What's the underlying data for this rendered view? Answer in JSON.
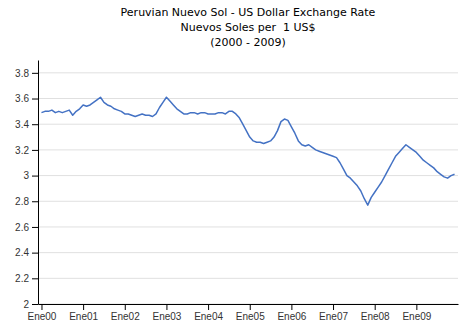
{
  "chart_data": {
    "type": "line",
    "title": "Peruvian Nuevo Sol - US Dollar Exchange Rate\nNuevos Soles per  1 US$\n(2000 - 2009)",
    "color": "#4472C4",
    "x": [
      0,
      1,
      2,
      3,
      4,
      5,
      6,
      7,
      8,
      9,
      10,
      11,
      12,
      13,
      14,
      15,
      16,
      17,
      18,
      19,
      20,
      21,
      22,
      23,
      24,
      25,
      26,
      27,
      28,
      29,
      30,
      31,
      32,
      33,
      34,
      35,
      36,
      37,
      38,
      39,
      40,
      41,
      42,
      43,
      44,
      45,
      46,
      47,
      48,
      49,
      50,
      51,
      52,
      53,
      54,
      55,
      56,
      57,
      58,
      59,
      60,
      61,
      62,
      63,
      64,
      65,
      66,
      67,
      68,
      69,
      70,
      71,
      72,
      73,
      74,
      75,
      76,
      77,
      78,
      79,
      80,
      81,
      82,
      83,
      84,
      85,
      86,
      87,
      88,
      89,
      90,
      91,
      92,
      93,
      94,
      95,
      96,
      97,
      98,
      99,
      100,
      101,
      102,
      103,
      104,
      105,
      106,
      107,
      108,
      109,
      110,
      111,
      112,
      113,
      114,
      115,
      116,
      117,
      118,
      119
    ],
    "values": [
      3.49,
      3.5,
      3.5,
      3.51,
      3.49,
      3.5,
      3.49,
      3.5,
      3.51,
      3.47,
      3.5,
      3.52,
      3.55,
      3.54,
      3.55,
      3.57,
      3.59,
      3.61,
      3.57,
      3.55,
      3.54,
      3.52,
      3.51,
      3.5,
      3.48,
      3.48,
      3.47,
      3.46,
      3.47,
      3.48,
      3.47,
      3.47,
      3.46,
      3.48,
      3.53,
      3.57,
      3.61,
      3.58,
      3.55,
      3.52,
      3.5,
      3.48,
      3.48,
      3.49,
      3.49,
      3.48,
      3.49,
      3.49,
      3.48,
      3.48,
      3.48,
      3.49,
      3.49,
      3.48,
      3.5,
      3.5,
      3.48,
      3.45,
      3.4,
      3.35,
      3.3,
      3.27,
      3.26,
      3.26,
      3.25,
      3.26,
      3.27,
      3.3,
      3.35,
      3.42,
      3.44,
      3.43,
      3.38,
      3.33,
      3.27,
      3.24,
      3.23,
      3.24,
      3.22,
      3.2,
      3.19,
      3.18,
      3.17,
      3.16,
      3.15,
      3.14,
      3.1,
      3.05,
      3.0,
      2.98,
      2.95,
      2.92,
      2.88,
      2.82,
      2.77,
      2.83,
      2.87,
      2.91,
      2.95,
      3.0,
      3.05,
      3.1,
      3.15,
      3.18,
      3.21,
      3.24,
      3.22,
      3.2,
      3.18,
      3.15,
      3.12,
      3.1,
      3.08,
      3.06,
      3.03,
      3.01,
      2.99,
      2.98,
      3.0,
      3.01
    ],
    "xlim": [
      -1,
      120
    ],
    "xticks": [
      {
        "value": 0,
        "label": "Ene00"
      },
      {
        "value": 12,
        "label": "Ene01"
      },
      {
        "value": 24,
        "label": "Ene02"
      },
      {
        "value": 36,
        "label": "Ene03"
      },
      {
        "value": 48,
        "label": "Ene04"
      },
      {
        "value": 60,
        "label": "Ene05"
      },
      {
        "value": 72,
        "label": "Ene06"
      },
      {
        "value": 84,
        "label": "Ene07"
      },
      {
        "value": 96,
        "label": "Ene08"
      },
      {
        "value": 108,
        "label": "Ene09"
      }
    ],
    "ylim": [
      2.0,
      3.9
    ],
    "yticks": [
      2,
      2.2,
      2.4,
      2.6,
      2.8,
      3,
      3.2,
      3.4,
      3.6,
      3.8
    ],
    "grid": true
  }
}
